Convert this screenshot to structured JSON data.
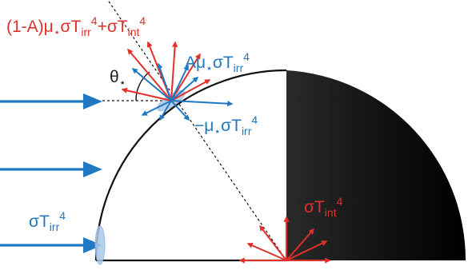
{
  "colors": {
    "red": "#e0302b",
    "blue": "#1f78c1",
    "ink": "#111111",
    "patch": "#a9c8ea"
  },
  "labels": {
    "reflected_emitted": {
      "prefix": "(1-A)μ",
      "star": "⋆",
      "mid": "σT",
      "sub1": "irr",
      "sup1": "4",
      "plus": "+σT",
      "sub2": "int",
      "sup2": "4"
    },
    "absorbed": {
      "prefix": "Aμ",
      "star": "⋆",
      "mid": "σT",
      "sub": "irr",
      "sup": "4"
    },
    "incident": {
      "prefix": "−μ",
      "star": "⋆",
      "mid": "σT",
      "sub": "irr",
      "sup": "4"
    },
    "angle": {
      "symbol": "θ",
      "star": "⋆"
    },
    "internal": {
      "mid": "σT",
      "sub": "int",
      "sup": "4"
    },
    "irradiation": {
      "mid": "σT",
      "sub": "irr",
      "sup": "4"
    }
  }
}
